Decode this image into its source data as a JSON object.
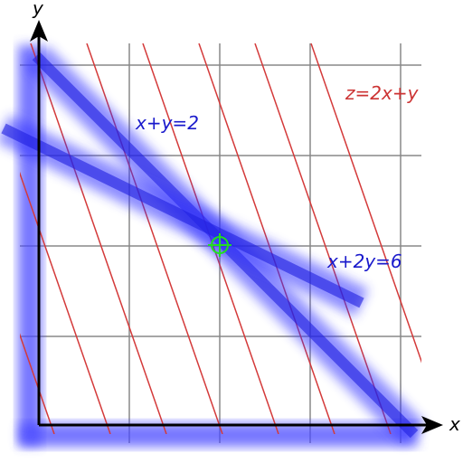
{
  "axes": {
    "x_label": "x",
    "y_label": "y"
  },
  "lines": [
    {
      "label": "x+y=2"
    },
    {
      "label": "x+2y=6"
    }
  ],
  "objective": {
    "label": "z=2x+y"
  }
}
